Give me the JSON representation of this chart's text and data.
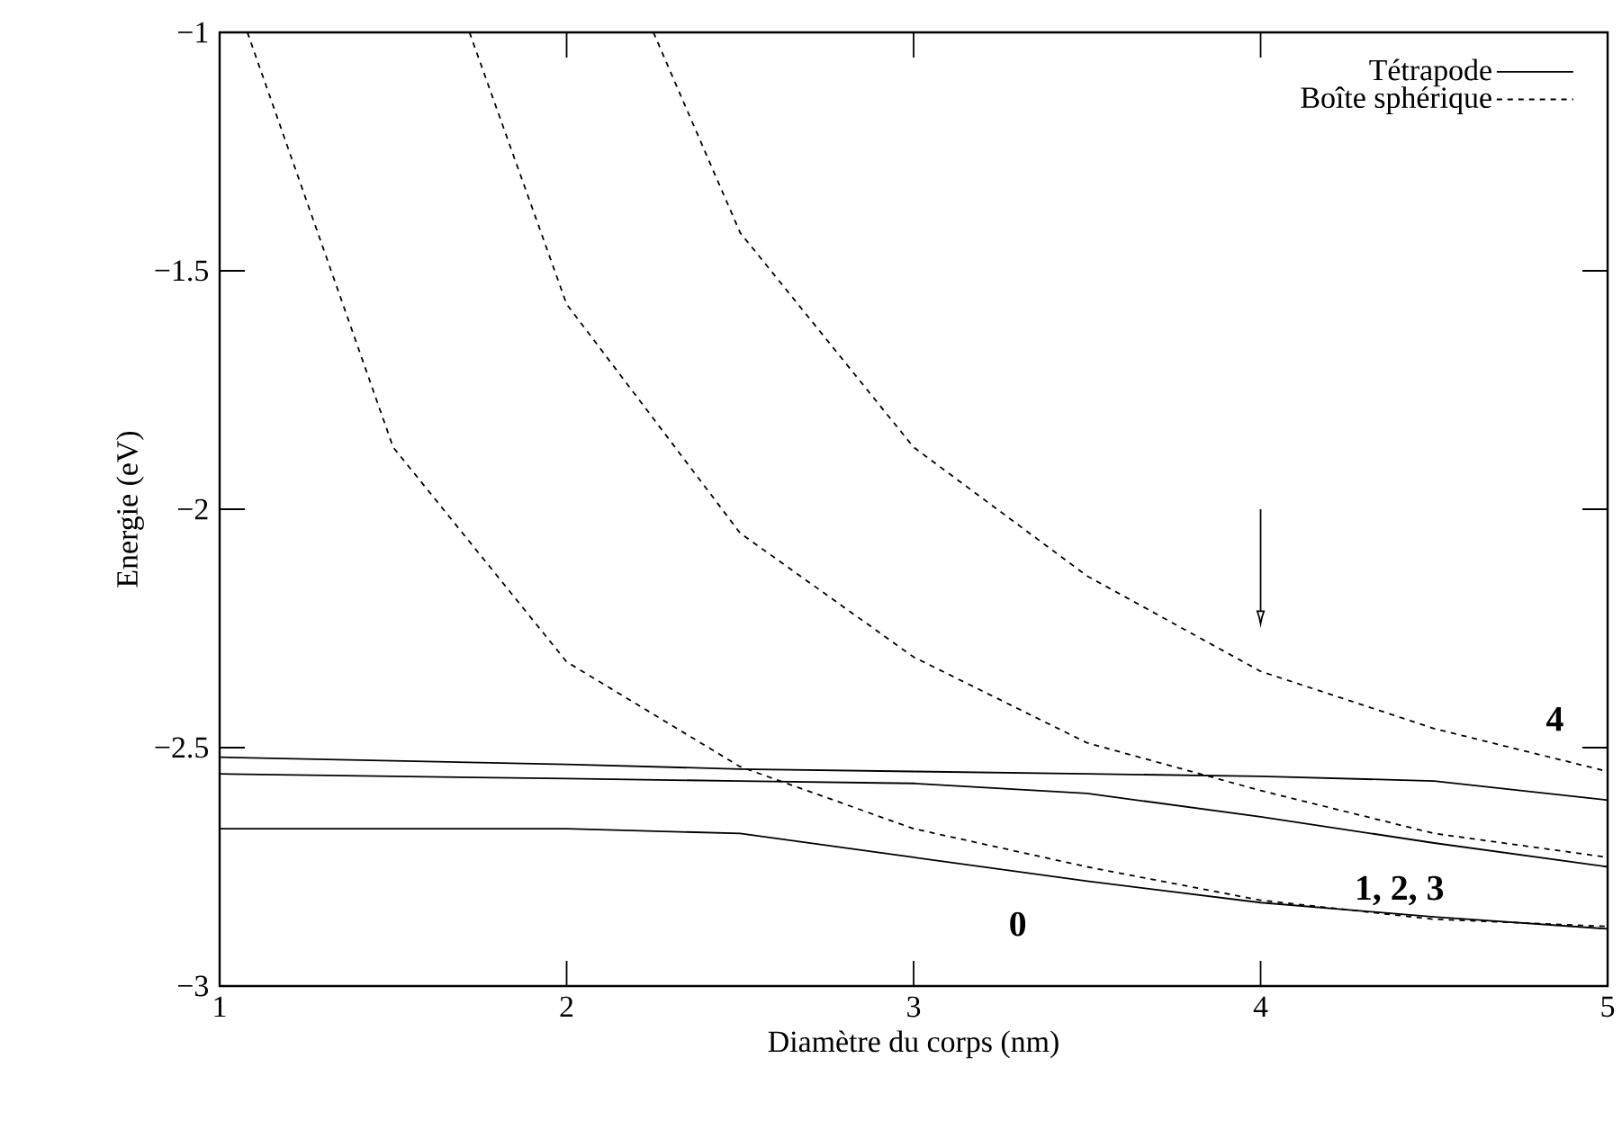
{
  "chart_data": {
    "type": "line",
    "xlabel": "Diamètre du corps (nm)",
    "ylabel": "Energie (eV)",
    "xlim": [
      1,
      5
    ],
    "ylim": [
      -3,
      -1
    ],
    "xticks": [
      1,
      2,
      3,
      4,
      5
    ],
    "yticks": [
      {
        "value": -3,
        "label": "−3"
      },
      {
        "value": -2.5,
        "label": "−2.5"
      },
      {
        "value": -2,
        "label": "−2"
      },
      {
        "value": -1.5,
        "label": "−1.5"
      },
      {
        "value": -1,
        "label": "−1"
      }
    ],
    "grid": false,
    "legend": "top right",
    "marker": "none",
    "series": [
      {
        "name": "Tétrapode",
        "color": "#000000",
        "line_style": "solid",
        "x": [
          1,
          2,
          2.5,
          3,
          3.5,
          4,
          4.5,
          5
        ],
        "values": [
          -2.52,
          -2.535,
          -2.545,
          -2.55,
          -2.555,
          -2.56,
          -2.57,
          -2.61
        ]
      },
      {
        "color": "#000000",
        "line_style": "solid",
        "x": [
          1,
          2,
          2.5,
          3,
          3.5,
          4,
          4.5,
          5
        ],
        "values": [
          -2.555,
          -2.565,
          -2.57,
          -2.575,
          -2.596,
          -2.645,
          -2.7,
          -2.75
        ]
      },
      {
        "color": "#000000",
        "line_style": "solid",
        "x": [
          1,
          2,
          2.5,
          3,
          3.5,
          4,
          4.5,
          5
        ],
        "values": [
          -2.67,
          -2.67,
          -2.68,
          -2.73,
          -2.78,
          -2.825,
          -2.855,
          -2.88
        ]
      },
      {
        "name": "Boîte sphérique",
        "color": "#000000",
        "line_style": "dashed",
        "x": [
          1.08,
          1.5,
          2,
          2.5,
          3,
          3.5,
          4,
          4.5,
          5
        ],
        "values": [
          -1,
          -1.87,
          -2.32,
          -2.54,
          -2.67,
          -2.75,
          -2.82,
          -2.86,
          -2.875
        ]
      },
      {
        "color": "#000000",
        "line_style": "dashed",
        "x": [
          1.72,
          2,
          2.5,
          3,
          3.5,
          4,
          4.5,
          5
        ],
        "values": [
          -1,
          -1.57,
          -2.05,
          -2.31,
          -2.49,
          -2.59,
          -2.68,
          -2.73
        ]
      },
      {
        "color": "#000000",
        "line_style": "dashed",
        "x": [
          2.25,
          2.5,
          3,
          3.5,
          4,
          4.5,
          5
        ],
        "values": [
          -1,
          -1.42,
          -1.87,
          -2.14,
          -2.34,
          -2.46,
          -2.55
        ]
      }
    ],
    "annotations": [
      "0",
      "1, 2, 3",
      "4"
    ]
  }
}
